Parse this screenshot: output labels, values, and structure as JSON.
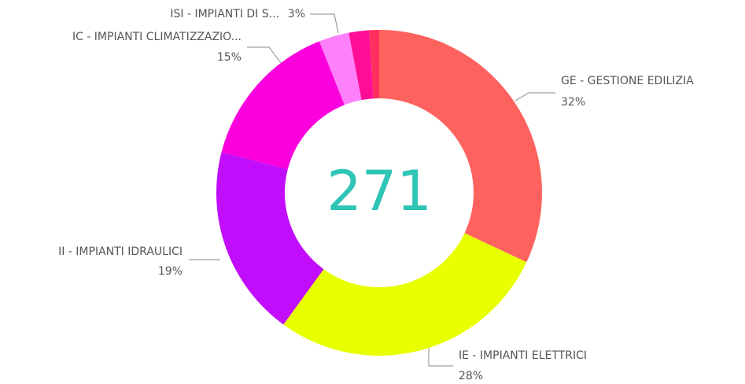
{
  "chart_data": {
    "type": "donut",
    "center_label": "271",
    "categories": [
      "GE - GESTIONE EDILIZIA",
      "IE - IMPIANTI ELETTRICI",
      "II - IMPIANTI IDRAULICI",
      "IC - IMPIANTI CLIMATIZZAZIO...",
      "ISI - IMPIANTI DI S...",
      null,
      null
    ],
    "values": [
      32,
      28,
      19,
      15,
      3,
      2,
      1
    ],
    "value_labels": [
      "32%",
      "28%",
      "19%",
      "15%",
      "3%",
      null,
      null
    ],
    "colors": [
      "#fd625e",
      "#e8ff00",
      "#c10dfb",
      "#fb00dc",
      "#ff80fb",
      "#ff0d96",
      "#ff2f5e"
    ]
  }
}
